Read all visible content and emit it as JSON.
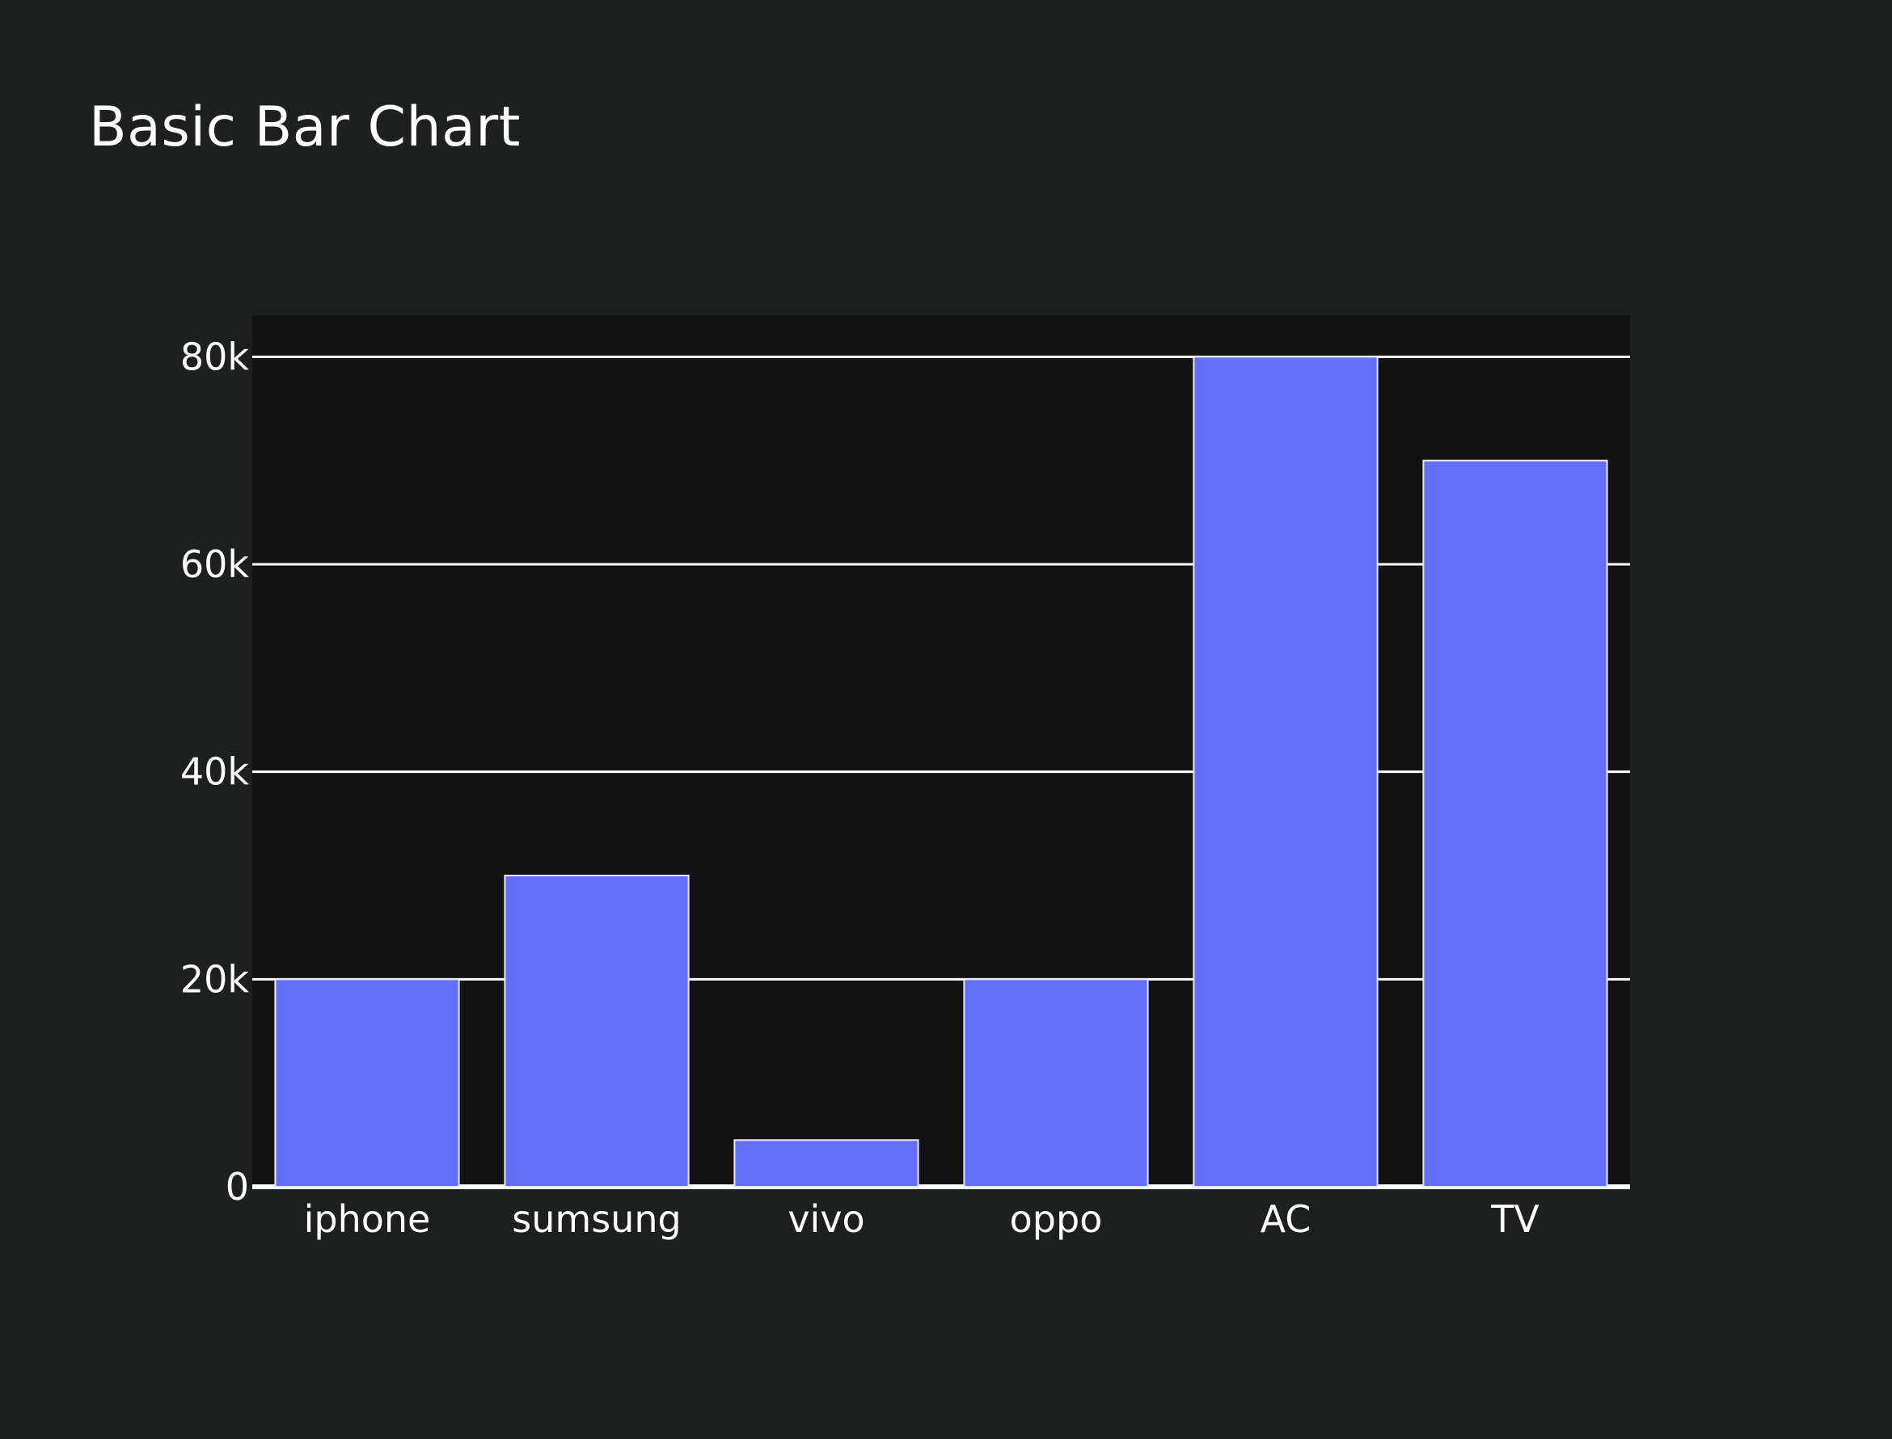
{
  "chart_data": {
    "type": "bar",
    "title": "Basic Bar Chart",
    "xlabel": "",
    "ylabel": "",
    "categories": [
      "iphone",
      "sumsung",
      "vivo",
      "oppo",
      "AC",
      "TV"
    ],
    "values": [
      20000,
      30000,
      4500,
      20000,
      80000,
      70000
    ],
    "ylim": [
      0,
      84000
    ],
    "yticks": [
      0,
      20000,
      40000,
      60000,
      80000
    ],
    "ytick_labels": [
      "0",
      "20k",
      "40k",
      "60k",
      "80k"
    ],
    "grid": true,
    "legend": "none",
    "colors": {
      "bar": "#636efa",
      "plot_background": "#121212",
      "page_background": "#1e1f1f",
      "grid": "#ffffff",
      "text": "#ffffff"
    }
  }
}
